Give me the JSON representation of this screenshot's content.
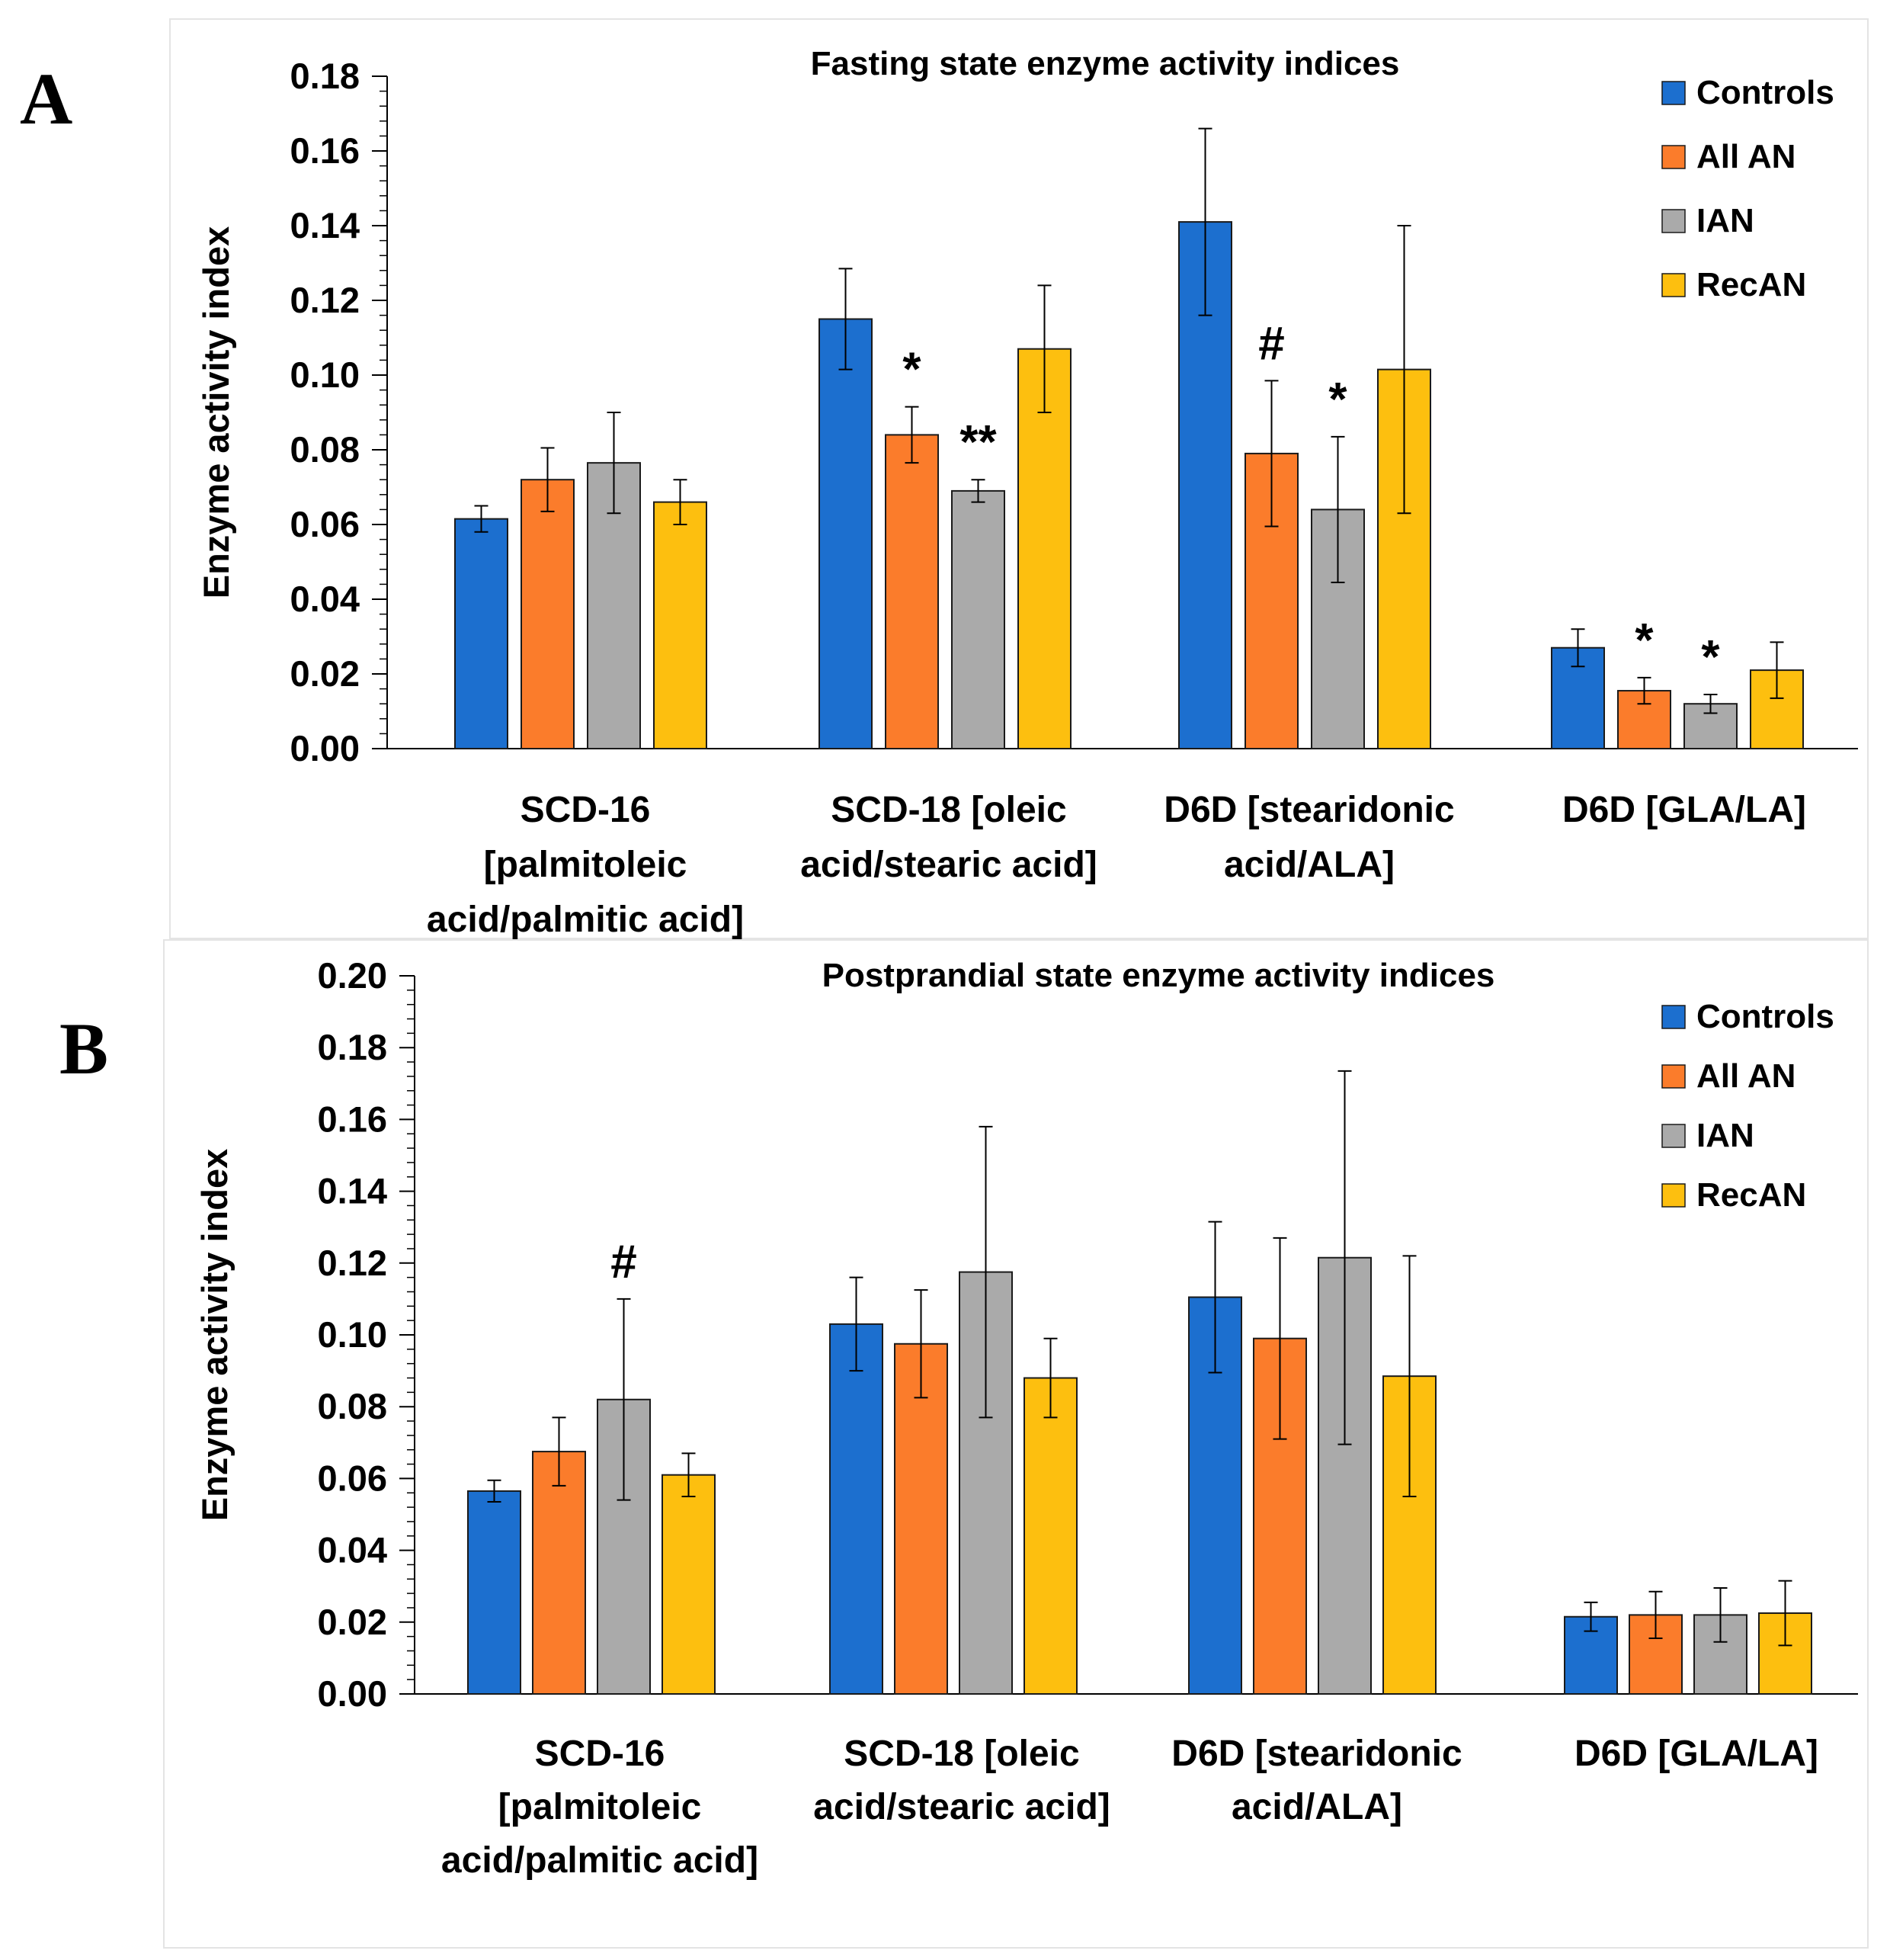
{
  "panel_letters": [
    "A",
    "B"
  ],
  "chart_data": [
    {
      "type": "bar",
      "panel": "A",
      "title": "Fasting state enzyme activity indices",
      "xlabel": "",
      "ylabel": "Enzyme activity index",
      "ylim": [
        0,
        0.18
      ],
      "yticks": [
        "0.00",
        "0.02",
        "0.04",
        "0.06",
        "0.08",
        "0.10",
        "0.12",
        "0.14",
        "0.16",
        "0.18"
      ],
      "categories": [
        [
          "SCD-16",
          "[palmitoleic",
          "acid/palmitic acid]"
        ],
        [
          "SCD-18 [oleic",
          "acid/stearic acid]"
        ],
        [
          "D6D [stearidonic",
          "acid/ALA]"
        ],
        [
          "D6D [GLA/LA]"
        ]
      ],
      "series": [
        {
          "name": "Controls",
          "color": "#1c6fcf",
          "values": [
            0.0615,
            0.115,
            0.141,
            0.027
          ],
          "errors": [
            0.0035,
            0.0135,
            0.025,
            0.005
          ]
        },
        {
          "name": "All AN",
          "color": "#fb7c2b",
          "values": [
            0.072,
            0.084,
            0.079,
            0.0155
          ],
          "errors": [
            0.0085,
            0.0075,
            0.0195,
            0.0035
          ]
        },
        {
          "name": "IAN",
          "color": "#aaaaaa",
          "values": [
            0.0765,
            0.069,
            0.064,
            0.012
          ],
          "errors": [
            0.0135,
            0.003,
            0.0195,
            0.0025
          ]
        },
        {
          "name": "RecAN",
          "color": "#fdbf0f",
          "values": [
            0.066,
            0.107,
            0.1015,
            0.021
          ],
          "errors": [
            0.006,
            0.017,
            0.0385,
            0.0075
          ]
        }
      ],
      "annotations": [
        {
          "text": "*",
          "category": 1,
          "series": 1
        },
        {
          "text": "**",
          "category": 1,
          "series": 2
        },
        {
          "text": "#",
          "category": 2,
          "series": 1
        },
        {
          "text": "*",
          "category": 2,
          "series": 2
        },
        {
          "text": "*",
          "category": 3,
          "series": 1
        },
        {
          "text": "*",
          "category": 3,
          "series": 2
        }
      ],
      "legend_position": "top-right"
    },
    {
      "type": "bar",
      "panel": "B",
      "title": "Postprandial state enzyme activity indices",
      "xlabel": "",
      "ylabel": "Enzyme activity index",
      "ylim": [
        0,
        0.2
      ],
      "yticks": [
        "0.00",
        "0.02",
        "0.04",
        "0.06",
        "0.08",
        "0.10",
        "0.12",
        "0.14",
        "0.16",
        "0.18",
        "0.20"
      ],
      "categories": [
        [
          "SCD-16",
          "[palmitoleic",
          "acid/palmitic acid]"
        ],
        [
          "SCD-18 [oleic",
          "acid/stearic acid]"
        ],
        [
          "D6D [stearidonic",
          "acid/ALA]"
        ],
        [
          "D6D [GLA/LA]"
        ]
      ],
      "series": [
        {
          "name": "Controls",
          "color": "#1c6fcf",
          "values": [
            0.0565,
            0.103,
            0.1105,
            0.0215
          ],
          "errors": [
            0.003,
            0.013,
            0.021,
            0.004
          ]
        },
        {
          "name": "All AN",
          "color": "#fb7c2b",
          "values": [
            0.0675,
            0.0975,
            0.099,
            0.022
          ],
          "errors": [
            0.0095,
            0.015,
            0.028,
            0.0065
          ]
        },
        {
          "name": "IAN",
          "color": "#aaaaaa",
          "values": [
            0.082,
            0.1175,
            0.1215,
            0.022
          ],
          "errors": [
            0.028,
            0.0405,
            0.052,
            0.0075
          ]
        },
        {
          "name": "RecAN",
          "color": "#fdbf0f",
          "values": [
            0.061,
            0.088,
            0.0885,
            0.0225
          ],
          "errors": [
            0.006,
            0.011,
            0.0335,
            0.009
          ]
        }
      ],
      "annotations": [
        {
          "text": "#",
          "category": 0,
          "series": 2
        }
      ],
      "legend_position": "top-right"
    }
  ]
}
